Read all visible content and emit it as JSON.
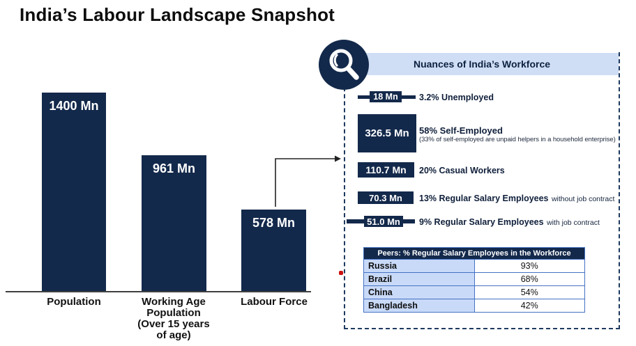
{
  "title": "India’s Labour Landscape Snapshot",
  "colors": {
    "navy": "#13294b",
    "band_blue": "#cfdef5",
    "table_row_blue": "#c9daf8",
    "table_border_blue": "#4472c4",
    "red_marker": "#cc1111"
  },
  "chart_data": [
    {
      "type": "bar",
      "title": "India’s Labour Landscape Snapshot",
      "categories": [
        "Population",
        "Working Age Population (Over 15 years of age)",
        "Labour Force"
      ],
      "values": [
        1400,
        961,
        578
      ],
      "value_labels": [
        "1400 Mn",
        "961 Mn",
        "578 Mn"
      ],
      "unit": "Mn",
      "ylim": [
        0,
        1400
      ],
      "grid": false,
      "bar_color": "#13294b"
    },
    {
      "type": "bar",
      "title": "Nuances of India’s Workforce",
      "unit": "Mn",
      "items": [
        {
          "value": 18,
          "value_label": "18 Mn",
          "label": "3.2% Unemployed",
          "label_suffix": "",
          "note": ""
        },
        {
          "value": 326.5,
          "value_label": "326.5 Mn",
          "label": "58% Self-Employed",
          "label_suffix": "",
          "note": "(33% of self-employed are unpaid helpers in a household enterprise)"
        },
        {
          "value": 110.7,
          "value_label": "110.7 Mn",
          "label": "20% Casual Workers",
          "label_suffix": "",
          "note": ""
        },
        {
          "value": 70.3,
          "value_label": "70.3 Mn",
          "label": "13% Regular Salary Employees",
          "label_suffix": "without job contract",
          "note": ""
        },
        {
          "value": 51.0,
          "value_label": "51.0 Mn",
          "label": "9% Regular Salary Employees",
          "label_suffix": "with job contract",
          "note": ""
        }
      ]
    },
    {
      "type": "table",
      "title": "Peers: % Regular Salary Employees in the Workforce",
      "rows": [
        [
          "Russia",
          "93%"
        ],
        [
          "Brazil",
          "68%"
        ],
        [
          "China",
          "54%"
        ],
        [
          "Bangladesh",
          "42%"
        ]
      ]
    }
  ]
}
